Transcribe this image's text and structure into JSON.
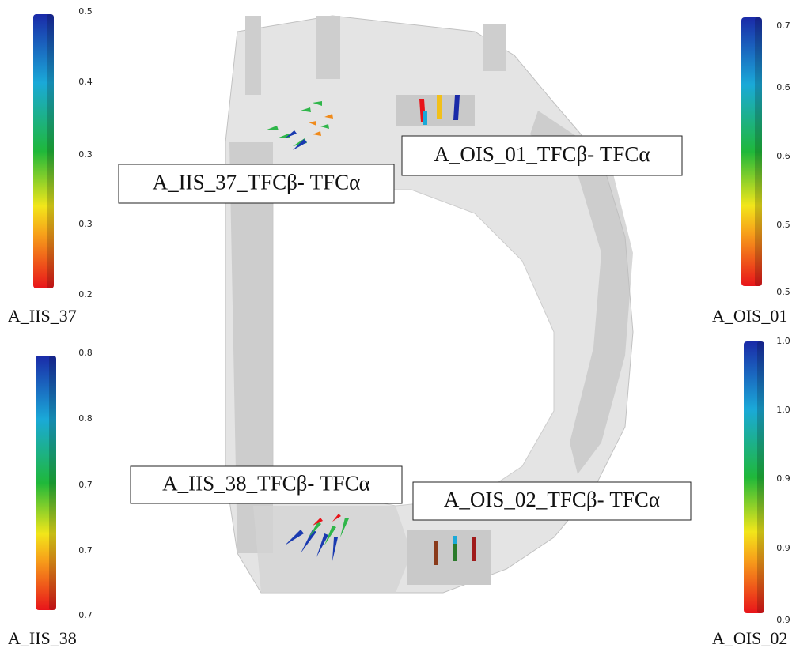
{
  "colorbars": [
    {
      "title": "A_IIS_37",
      "ticks": [
        "0.5",
        "0.4",
        "0.3",
        "0.3",
        "0.2"
      ]
    },
    {
      "title": "A_OIS_01",
      "ticks": [
        "0.7",
        "0.6",
        "0.6",
        "0.5",
        "0.5"
      ]
    },
    {
      "title": "A_IIS_38",
      "ticks": [
        "0.8",
        "0.8",
        "0.7",
        "0.7",
        "0.7"
      ]
    },
    {
      "title": "A_OIS_02",
      "ticks": [
        "1.0",
        "1.0",
        "0.9",
        "0.9",
        "0.9"
      ]
    }
  ],
  "labels": [
    "A_IIS_37_TFCβ- TFCα",
    "A_OIS_01_TFCβ- TFCα",
    "A_IIS_38_TFCβ- TFCα",
    "A_OIS_02_TFCβ- TFCα"
  ]
}
